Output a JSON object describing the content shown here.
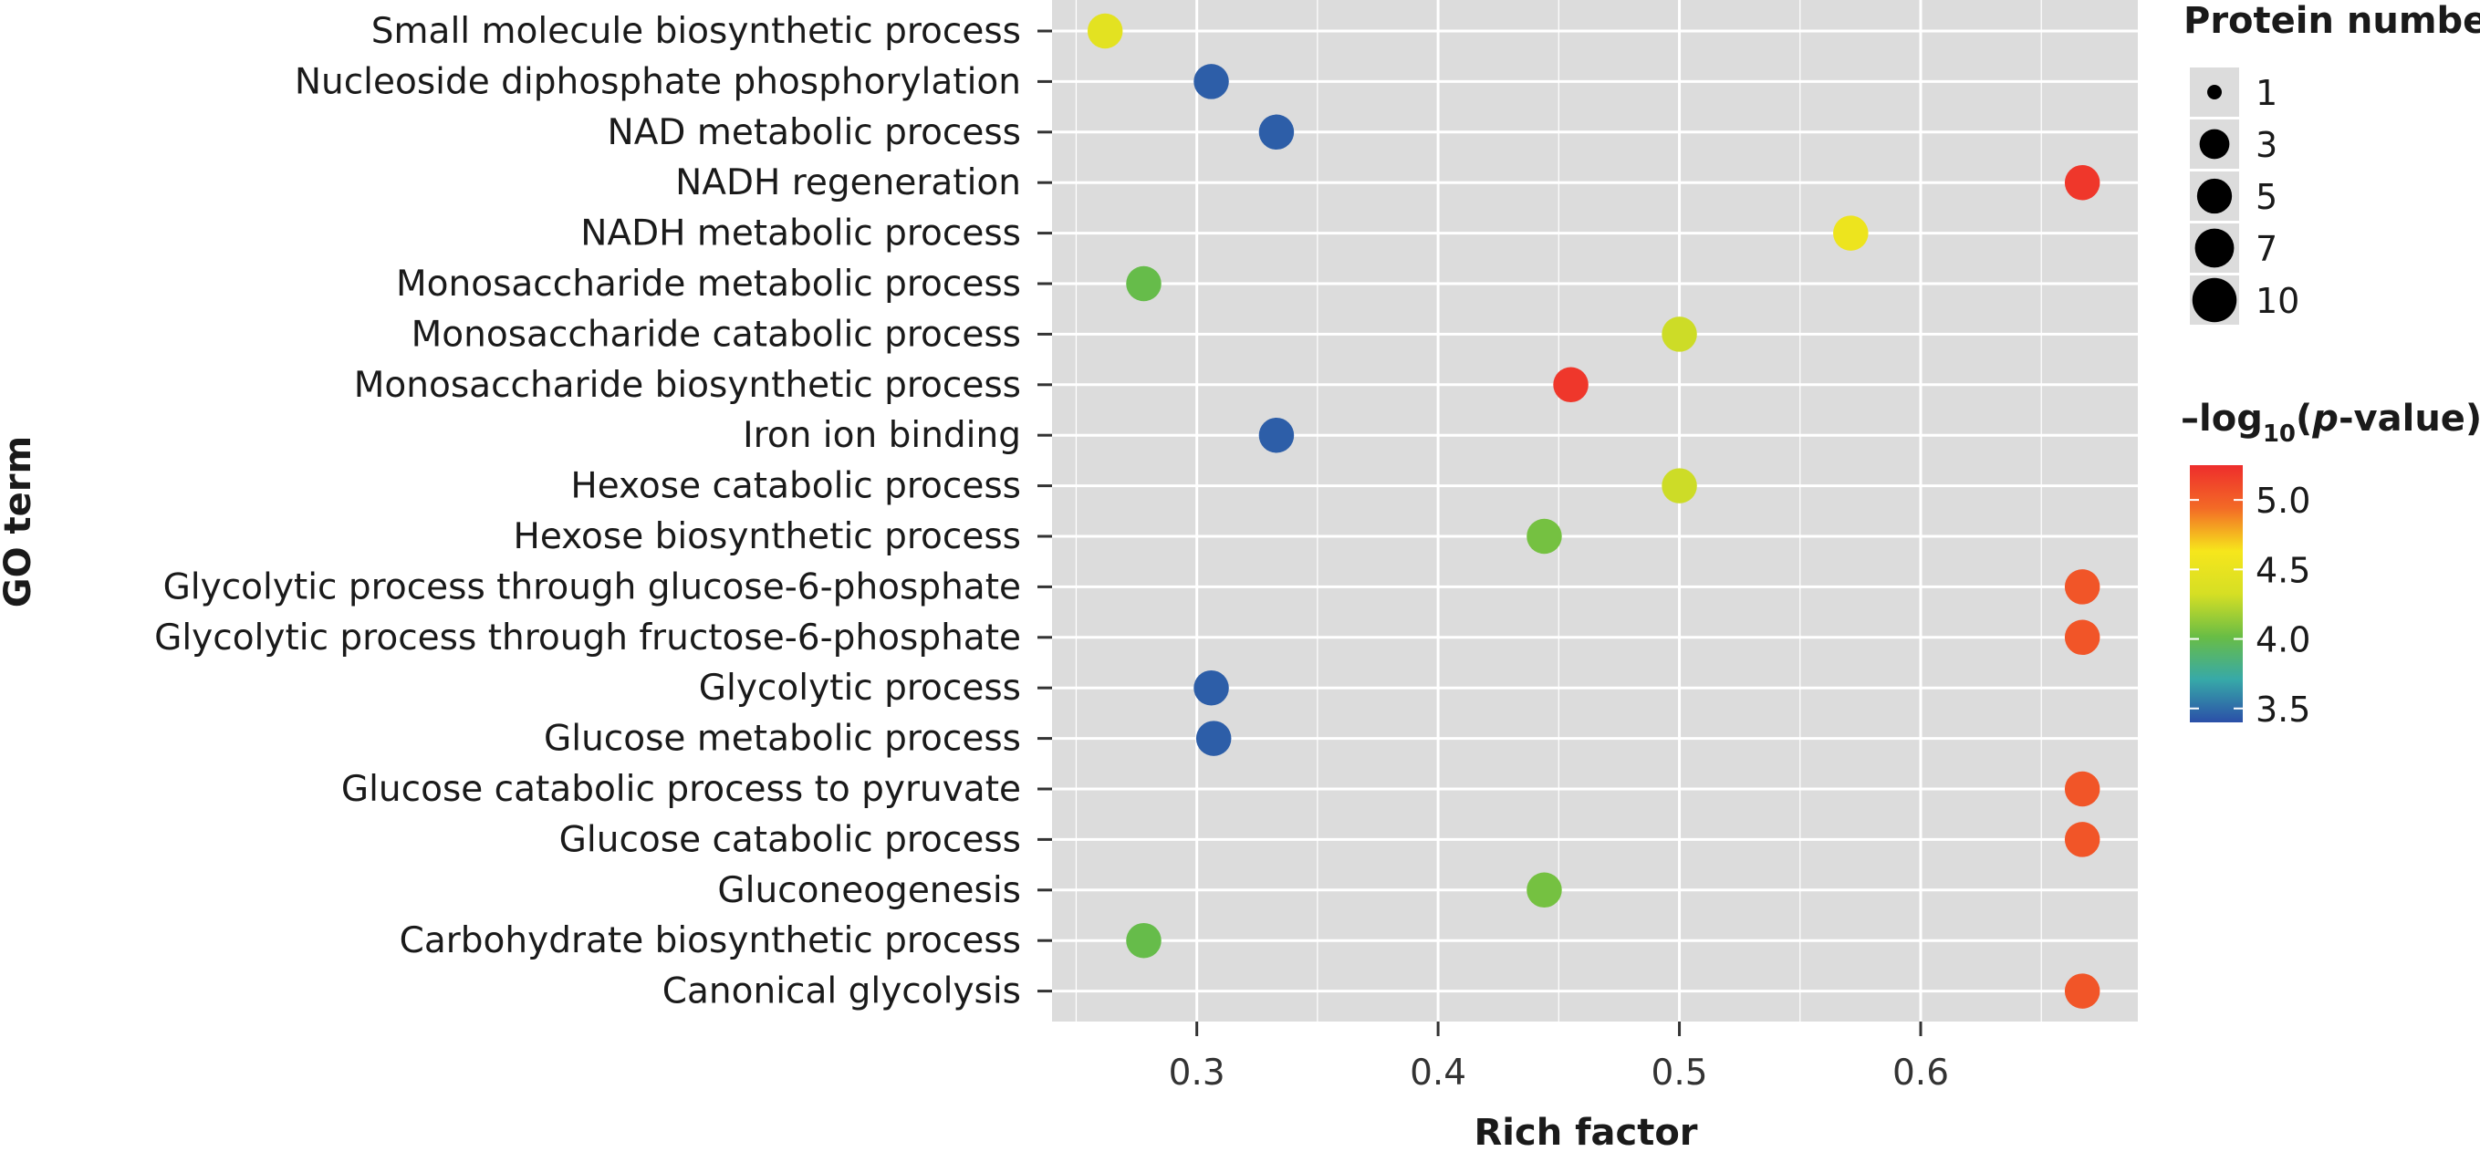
{
  "chart_data": {
    "type": "scatter",
    "xlabel": "Rich factor",
    "ylabel": "GO term",
    "xlim": [
      0.24,
      0.69
    ],
    "xticks": [
      0.3,
      0.4,
      0.5,
      0.6
    ],
    "xtick_labels": [
      "0.3",
      "0.4",
      "0.5",
      "0.6"
    ],
    "grid": true,
    "points": [
      {
        "term": "Small molecule biosynthetic process",
        "x": 0.262,
        "size": 3,
        "neglog10p": 4.45
      },
      {
        "term": "Nucleoside diphosphate phosphorylation",
        "x": 0.306,
        "size": 3,
        "neglog10p": 3.45
      },
      {
        "term": "NAD metabolic process",
        "x": 0.333,
        "size": 3,
        "neglog10p": 3.45
      },
      {
        "term": "NADH regeneration",
        "x": 0.667,
        "size": 3,
        "neglog10p": 5.2
      },
      {
        "term": "NADH metabolic process",
        "x": 0.571,
        "size": 3,
        "neglog10p": 4.55
      },
      {
        "term": "Monosaccharide metabolic process",
        "x": 0.278,
        "size": 3,
        "neglog10p": 4.0
      },
      {
        "term": "Monosaccharide catabolic process",
        "x": 0.5,
        "size": 3,
        "neglog10p": 4.3
      },
      {
        "term": "Monosaccharide biosynthetic process",
        "x": 0.455,
        "size": 3,
        "neglog10p": 5.2
      },
      {
        "term": "Iron ion binding",
        "x": 0.333,
        "size": 3,
        "neglog10p": 3.45
      },
      {
        "term": "Hexose catabolic process",
        "x": 0.5,
        "size": 3,
        "neglog10p": 4.3
      },
      {
        "term": "Hexose biosynthetic process",
        "x": 0.444,
        "size": 3,
        "neglog10p": 4.05
      },
      {
        "term": "Glycolytic process through glucose-6-phosphate",
        "x": 0.667,
        "size": 3,
        "neglog10p": 5.05
      },
      {
        "term": "Glycolytic process through fructose-6-phosphate",
        "x": 0.667,
        "size": 3,
        "neglog10p": 5.05
      },
      {
        "term": "Glycolytic process",
        "x": 0.306,
        "size": 3,
        "neglog10p": 3.45
      },
      {
        "term": "Glucose metabolic process",
        "x": 0.307,
        "size": 3,
        "neglog10p": 3.45
      },
      {
        "term": "Glucose catabolic process to pyruvate",
        "x": 0.667,
        "size": 3,
        "neglog10p": 5.05
      },
      {
        "term": "Glucose catabolic process",
        "x": 0.667,
        "size": 3,
        "neglog10p": 5.05
      },
      {
        "term": "Gluconeogenesis",
        "x": 0.444,
        "size": 3,
        "neglog10p": 4.05
      },
      {
        "term": "Carbohydrate biosynthetic process",
        "x": 0.278,
        "size": 3,
        "neglog10p": 4.0
      },
      {
        "term": "Canonical glycolysis",
        "x": 0.667,
        "size": 3,
        "neglog10p": 5.05
      }
    ],
    "size_legend": {
      "title": "Protein number",
      "values": [
        1,
        3,
        5,
        7,
        10
      ],
      "labels": [
        "1",
        "3",
        "5",
        "7",
        "10"
      ]
    },
    "color_legend": {
      "title_prefix": "–log",
      "title_sub": "10",
      "title_open": "(",
      "title_italic": "p",
      "title_suffix": "-value)",
      "ticks": [
        3.5,
        4.0,
        4.5,
        5.0
      ],
      "tick_labels": [
        "3.5",
        "4.0",
        "4.5",
        "5.0"
      ],
      "range": [
        3.4,
        5.25
      ],
      "colors": [
        "#2b4fa8",
        "#37a9a8",
        "#69bd45",
        "#d6df24",
        "#f6e61c",
        "#f36a26",
        "#ee2d2c"
      ]
    },
    "legend_position": "right"
  }
}
